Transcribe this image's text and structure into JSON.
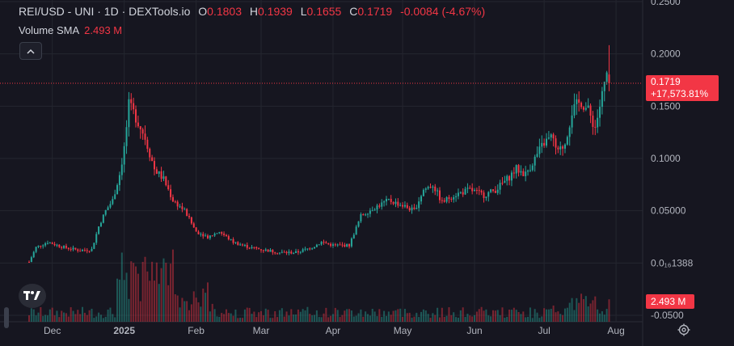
{
  "header": {
    "title": "REI/USD - UNI · 1D · DEXTools.io",
    "open_label": "O",
    "open_value": "0.1803",
    "high_label": "H",
    "high_value": "0.1939",
    "low_label": "L",
    "low_value": "0.1655",
    "close_label": "C",
    "close_value": "0.1719",
    "change": "-0.0084 (-4.67%)"
  },
  "indicator": {
    "label": "Volume SMA",
    "value": "2.493 M"
  },
  "collapse_icon": "chevron-up-icon",
  "logo_icon": "tradingview-logo",
  "settings_icon": "gear-icon",
  "price_label": {
    "price": "0.1719",
    "change": "+17,573.81%"
  },
  "volume_label": "2.493 M",
  "colors": {
    "up": "#26a69a",
    "down": "#f23645",
    "background": "#161620",
    "grid": "#2a2c36"
  },
  "chart_data": {
    "type": "candlestick",
    "title": "REI/USD - UNI · 1D · DEXTools.io",
    "ylabel": "",
    "ylim": [
      -0.05,
      0.25
    ],
    "y_ticks": [
      "0.2500",
      "0.2000",
      "0.1500",
      "0.1000",
      "0.05000",
      "0.0₁₆1388",
      "-0.0500"
    ],
    "y_tick_values": [
      0.25,
      0.2,
      0.15,
      0.1,
      0.05,
      0.0,
      -0.05
    ],
    "x_ticks": [
      "Dec",
      "2025",
      "Feb",
      "Mar",
      "Apr",
      "May",
      "Jun",
      "Jul",
      "Aug"
    ],
    "x_tick_days": [
      10,
      41,
      72,
      100,
      131,
      161,
      192,
      222,
      253
    ],
    "last_price": 0.1719,
    "grid": true,
    "key_points": [
      [
        0,
        0.001
      ],
      [
        3,
        0.015
      ],
      [
        8,
        0.02
      ],
      [
        15,
        0.015
      ],
      [
        22,
        0.012
      ],
      [
        27,
        0.013
      ],
      [
        30,
        0.035
      ],
      [
        33,
        0.05
      ],
      [
        36,
        0.06
      ],
      [
        39,
        0.085
      ],
      [
        41,
        0.11
      ],
      [
        43,
        0.15
      ],
      [
        46,
        0.14
      ],
      [
        50,
        0.12
      ],
      [
        54,
        0.09
      ],
      [
        58,
        0.08
      ],
      [
        62,
        0.06
      ],
      [
        67,
        0.05
      ],
      [
        72,
        0.03
      ],
      [
        77,
        0.025
      ],
      [
        82,
        0.03
      ],
      [
        88,
        0.02
      ],
      [
        95,
        0.015
      ],
      [
        100,
        0.013
      ],
      [
        108,
        0.01
      ],
      [
        115,
        0.01
      ],
      [
        122,
        0.015
      ],
      [
        126,
        0.02
      ],
      [
        131,
        0.017
      ],
      [
        138,
        0.017
      ],
      [
        143,
        0.045
      ],
      [
        148,
        0.052
      ],
      [
        155,
        0.06
      ],
      [
        161,
        0.055
      ],
      [
        166,
        0.05
      ],
      [
        170,
        0.07
      ],
      [
        174,
        0.075
      ],
      [
        178,
        0.058
      ],
      [
        183,
        0.065
      ],
      [
        190,
        0.07
      ],
      [
        196,
        0.065
      ],
      [
        201,
        0.07
      ],
      [
        206,
        0.08
      ],
      [
        210,
        0.09
      ],
      [
        214,
        0.085
      ],
      [
        218,
        0.1
      ],
      [
        222,
        0.115
      ],
      [
        225,
        0.12
      ],
      [
        228,
        0.105
      ],
      [
        231,
        0.115
      ],
      [
        234,
        0.145
      ],
      [
        238,
        0.155
      ],
      [
        241,
        0.145
      ],
      [
        244,
        0.13
      ],
      [
        247,
        0.16
      ],
      [
        249,
        0.18
      ],
      [
        250,
        0.1719
      ]
    ],
    "volume_scale_max": 6.0
  }
}
